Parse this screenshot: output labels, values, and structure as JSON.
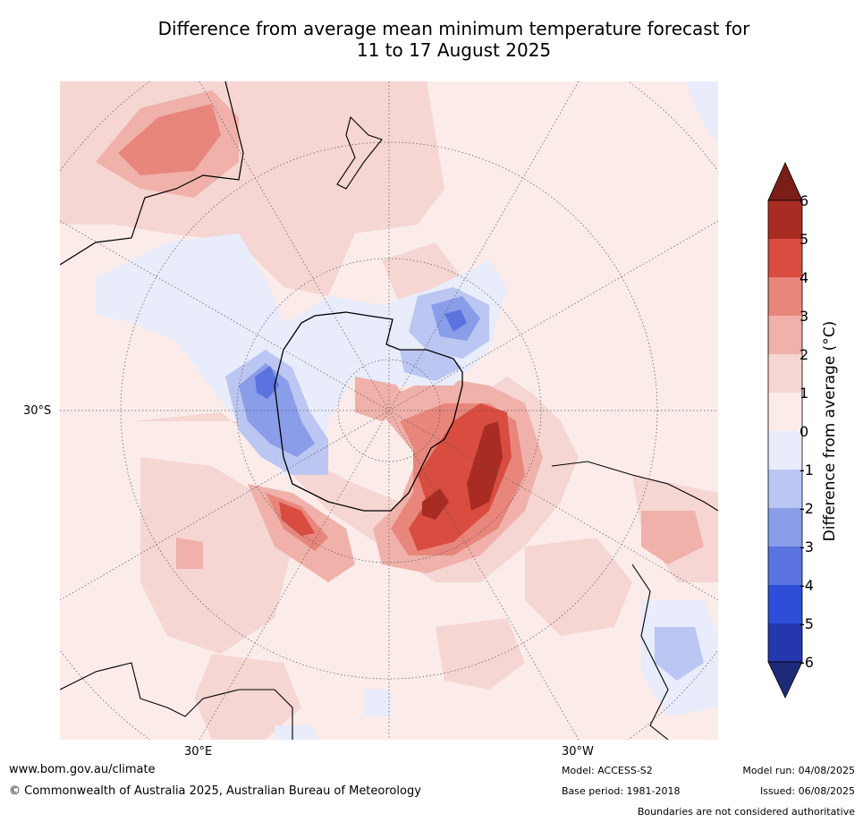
{
  "title": {
    "line1": "Difference from average mean minimum temperature forecast for",
    "line2": "11 to 17 August 2025"
  },
  "map": {
    "projection": "south-polar-stereographic",
    "labels": {
      "lat": "30°S",
      "lon_east": "30°E",
      "lon_west": "30°W"
    }
  },
  "colorbar": {
    "label": "Difference from average (°C)",
    "ticks": [
      "6",
      "5",
      "4",
      "3",
      "2",
      "1",
      "0",
      "-1",
      "-2",
      "-3",
      "-4",
      "-5",
      "-6"
    ],
    "colors": {
      "over": "#7a1e17",
      "5_to_6": "#a82c24",
      "4_to_5": "#d94c40",
      "3_to_4": "#e8867c",
      "2_to_3": "#efb1aa",
      "1_to_2": "#f5d6d3",
      "0_to_1": "#fbecea",
      "m1_to_0": "#e8ecfb",
      "m2_to_m1": "#bcc6f2",
      "m3_to_m2": "#8a9de9",
      "m4_to_m3": "#5a73de",
      "m5_to_m4": "#2f4ed8",
      "m6_to_m5": "#2537ad",
      "under": "#1c2a78"
    }
  },
  "footer": {
    "url": "www.bom.gov.au/climate",
    "copyright": "© Commonwealth of Australia 2025, Australian Bureau of Meteorology",
    "model": "Model: ACCESS-S2",
    "base_period": "Base period: 1981-2018",
    "model_run": "Model run: 04/08/2025",
    "issued": "Issued: 06/08/2025",
    "disclaimer": "Boundaries are not considered authoritative"
  }
}
